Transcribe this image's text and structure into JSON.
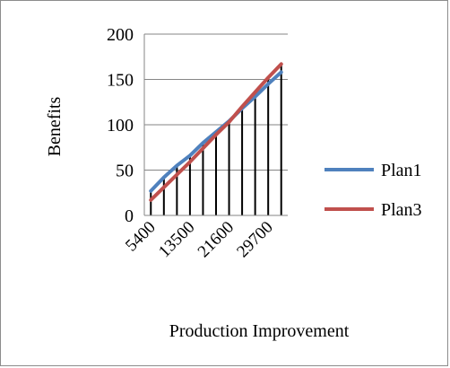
{
  "chart_data": {
    "type": "line",
    "title": "",
    "xlabel": "Production Improvement",
    "ylabel": "Benefits",
    "ylim": [
      0,
      200
    ],
    "yticks": [
      "0",
      "50",
      "100",
      "150",
      "200"
    ],
    "x": [
      5400,
      8100,
      10800,
      13500,
      16200,
      18900,
      21600,
      24300,
      27000,
      29700,
      32400
    ],
    "xtick_labels": [
      "5400",
      "13500",
      "21600",
      "29700"
    ],
    "drop_lines": true,
    "grid": "horizontal",
    "legend_position": "right",
    "series": [
      {
        "name": "Plan1",
        "color": "#4f81bd",
        "values": [
          27,
          42,
          55,
          66,
          80,
          92,
          104,
          118,
          131,
          145,
          158
        ]
      },
      {
        "name": "Plan3",
        "color": "#c0504d",
        "values": [
          17,
          31,
          45,
          59,
          74,
          89,
          103,
          120,
          136,
          152,
          167
        ]
      }
    ]
  }
}
